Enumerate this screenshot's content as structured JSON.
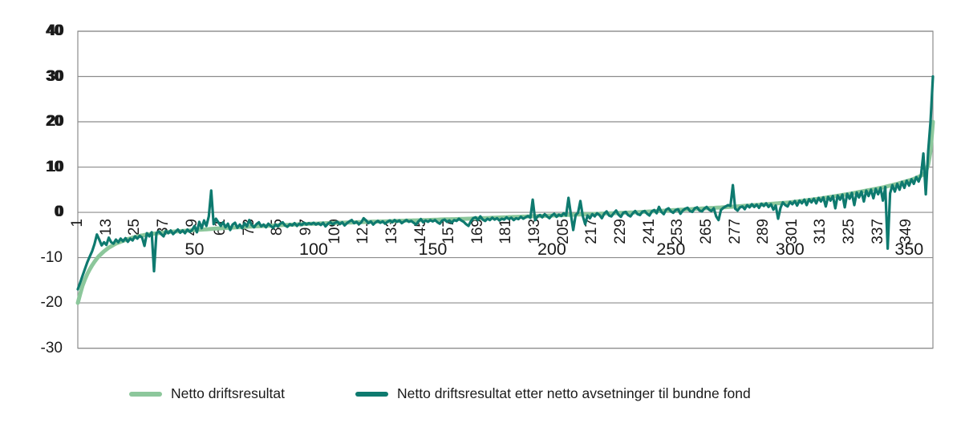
{
  "legend": {
    "items": [
      {
        "label": "Netto driftsresultat",
        "color": "#8CC79B"
      },
      {
        "label": "Netto driftsresultat etter netto avsetninger til bundne fond",
        "color": "#0E7A6F"
      }
    ]
  },
  "colors": {
    "background": "#ffffff",
    "gridline": "#8c8c8c",
    "text": "#1a1a1a",
    "series_light_green": "#8CC79B",
    "series_dark_teal": "#0E7A6F"
  },
  "chart_data": {
    "type": "line",
    "title": "",
    "xlabel": "",
    "ylabel": "",
    "ylim": [
      -30,
      40
    ],
    "x_start": 1,
    "x_end": 360,
    "grid": "horizontal",
    "legend_position": "bottom",
    "y_ticks": [
      40,
      30,
      20,
      10,
      0,
      -10,
      -20,
      -30
    ],
    "x_ticks_rotated": [
      1,
      13,
      25,
      37,
      49,
      61,
      73,
      85,
      97,
      109,
      121,
      133,
      145,
      157,
      169,
      181,
      193,
      205,
      217,
      229,
      241,
      253,
      265,
      277,
      289,
      301,
      313,
      325,
      337,
      349
    ],
    "x_ticks_horizontal": [
      50,
      100,
      150,
      200,
      250,
      300,
      350
    ],
    "series": [
      {
        "name": "Netto driftsresultat",
        "color": "#8CC79B",
        "stroke_width": 5,
        "values": [
          -20.0,
          -18.0,
          -16.2,
          -14.8,
          -13.6,
          -12.6,
          -11.7,
          -10.9,
          -10.2,
          -9.6,
          -9.1,
          -8.6,
          -8.2,
          -7.8,
          -7.5,
          -7.2,
          -6.9,
          -6.7,
          -6.5,
          -6.3,
          -6.1,
          -5.9,
          -5.75,
          -5.6,
          -5.45,
          -5.3,
          -5.2,
          -5.1,
          -5.0,
          -4.9,
          -4.83,
          -4.77,
          -4.7,
          -4.63,
          -4.57,
          -4.5,
          -4.45,
          -4.4,
          -4.35,
          -4.3,
          -4.26,
          -4.22,
          -4.19,
          -4.15,
          -4.11,
          -4.07,
          -4.04,
          -4.0,
          -3.96,
          -3.92,
          -3.89,
          -3.85,
          -3.81,
          -3.77,
          -3.74,
          -3.7,
          -3.66,
          -3.62,
          -3.59,
          -3.55,
          -3.52,
          -3.49,
          -3.46,
          -3.43,
          -3.4,
          -3.37,
          -3.34,
          -3.31,
          -3.28,
          -3.25,
          -3.22,
          -3.19,
          -3.16,
          -3.13,
          -3.1,
          -3.08,
          -3.06,
          -3.04,
          -3.02,
          -3.0,
          -2.97,
          -2.94,
          -2.91,
          -2.88,
          -2.85,
          -2.83,
          -2.81,
          -2.79,
          -2.77,
          -2.75,
          -2.72,
          -2.69,
          -2.66,
          -2.63,
          -2.6,
          -2.58,
          -2.56,
          -2.54,
          -2.52,
          -2.5,
          -2.48,
          -2.46,
          -2.44,
          -2.42,
          -2.4,
          -2.38,
          -2.36,
          -2.34,
          -2.32,
          -2.3,
          -2.29,
          -2.28,
          -2.27,
          -2.26,
          -2.25,
          -2.23,
          -2.21,
          -2.19,
          -2.17,
          -2.15,
          -2.13,
          -2.11,
          -2.09,
          -2.07,
          -2.05,
          -2.04,
          -2.03,
          -2.02,
          -2.01,
          -2.0,
          -1.98,
          -1.96,
          -1.94,
          -1.92,
          -1.9,
          -1.88,
          -1.86,
          -1.84,
          -1.82,
          -1.8,
          -1.79,
          -1.78,
          -1.77,
          -1.76,
          -1.75,
          -1.73,
          -1.71,
          -1.69,
          -1.67,
          -1.65,
          -1.63,
          -1.61,
          -1.59,
          -1.57,
          -1.55,
          -1.54,
          -1.53,
          -1.52,
          -1.51,
          -1.5,
          -1.48,
          -1.46,
          -1.44,
          -1.42,
          -1.4,
          -1.38,
          -1.36,
          -1.34,
          -1.32,
          -1.3,
          -1.28,
          -1.26,
          -1.24,
          -1.22,
          -1.2,
          -1.18,
          -1.16,
          -1.14,
          -1.12,
          -1.1,
          -1.08,
          -1.06,
          -1.04,
          -1.02,
          -1.0,
          -0.98,
          -0.96,
          -0.94,
          -0.92,
          -0.9,
          -0.88,
          -0.86,
          -0.84,
          -0.82,
          -0.8,
          -0.78,
          -0.76,
          -0.74,
          -0.72,
          -0.7,
          -0.68,
          -0.66,
          -0.64,
          -0.62,
          -0.6,
          -0.58,
          -0.56,
          -0.54,
          -0.52,
          -0.5,
          -0.48,
          -0.46,
          -0.44,
          -0.42,
          -0.4,
          -0.38,
          -0.36,
          -0.34,
          -0.32,
          -0.3,
          -0.28,
          -0.26,
          -0.24,
          -0.22,
          -0.2,
          -0.18,
          -0.16,
          -0.14,
          -0.12,
          -0.1,
          -0.08,
          -0.06,
          -0.04,
          -0.02,
          0.0,
          0.03,
          0.06,
          0.09,
          0.12,
          0.15,
          0.18,
          0.21,
          0.24,
          0.27,
          0.3,
          0.33,
          0.36,
          0.39,
          0.42,
          0.45,
          0.48,
          0.51,
          0.54,
          0.57,
          0.6,
          0.63,
          0.66,
          0.69,
          0.72,
          0.75,
          0.78,
          0.81,
          0.84,
          0.87,
          0.9,
          0.93,
          0.96,
          0.99,
          1.02,
          1.05,
          1.08,
          1.11,
          1.14,
          1.17,
          1.2,
          1.24,
          1.28,
          1.32,
          1.36,
          1.4,
          1.44,
          1.48,
          1.52,
          1.56,
          1.6,
          1.64,
          1.68,
          1.72,
          1.76,
          1.8,
          1.84,
          1.88,
          1.92,
          1.96,
          2.0,
          2.04,
          2.08,
          2.12,
          2.16,
          2.2,
          2.27,
          2.33,
          2.4,
          2.47,
          2.53,
          2.6,
          2.67,
          2.73,
          2.8,
          2.87,
          2.93,
          3.0,
          3.08,
          3.17,
          3.25,
          3.33,
          3.42,
          3.5,
          3.58,
          3.67,
          3.75,
          3.83,
          3.92,
          4.0,
          4.1,
          4.2,
          4.3,
          4.4,
          4.5,
          4.6,
          4.7,
          4.8,
          4.9,
          5.0,
          5.1,
          5.2,
          5.3,
          5.4,
          5.5,
          5.63,
          5.77,
          5.9,
          6.03,
          6.17,
          6.3,
          6.45,
          6.6,
          6.75,
          6.9,
          7.05,
          7.2,
          7.4,
          7.6,
          7.85,
          8.1,
          8.4,
          9.0,
          10.5,
          13.5,
          20.0
        ]
      },
      {
        "name": "Netto driftsresultat etter netto avsetninger til bundne fond",
        "color": "#0E7A6F",
        "stroke_width": 3.2,
        "values": [
          -17.0,
          -15.5,
          -14.0,
          -12.5,
          -11.0,
          -9.8,
          -8.6,
          -7.0,
          -4.9,
          -6.0,
          -7.3,
          -6.6,
          -7.2,
          -5.6,
          -6.6,
          -6.9,
          -6.0,
          -6.6,
          -5.8,
          -6.4,
          -5.7,
          -6.5,
          -5.8,
          -6.2,
          -5.3,
          -5.8,
          -5.2,
          -5.6,
          -7.4,
          -4.6,
          -5.3,
          -4.4,
          -13.0,
          -4.6,
          -4.2,
          -4.8,
          -5.3,
          -4.1,
          -4.6,
          -4.0,
          -4.8,
          -4.3,
          -3.8,
          -4.5,
          -4.0,
          -4.6,
          -3.8,
          -4.3,
          -3.9,
          -3.0,
          -4.4,
          -2.1,
          -3.5,
          -1.8,
          -3.0,
          -0.9,
          4.8,
          -2.6,
          -1.4,
          -2.2,
          -3.0,
          -2.2,
          -3.3,
          -2.5,
          -3.9,
          -2.7,
          -2.3,
          -3.4,
          -2.7,
          -3.5,
          -2.4,
          -3.1,
          -1.7,
          -2.8,
          -3.3,
          -2.6,
          -2.2,
          -3.1,
          -2.7,
          -3.3,
          -2.5,
          -3.0,
          -3.4,
          -2.7,
          -3.1,
          -2.5,
          -2.2,
          -2.9,
          -3.2,
          -2.6,
          -2.9,
          -2.4,
          -3.0,
          -2.5,
          -2.8,
          -2.3,
          -2.7,
          -2.4,
          -2.6,
          -2.3,
          -2.7,
          -2.4,
          -2.8,
          -2.3,
          -3.1,
          -2.5,
          -2.2,
          -2.6,
          -2.3,
          -2.1,
          -2.6,
          -2.2,
          -2.9,
          -2.4,
          -2.0,
          -1.7,
          -2.4,
          -2.1,
          -2.6,
          -2.2,
          -1.3,
          -1.8,
          -2.4,
          -2.0,
          -2.7,
          -2.2,
          -1.9,
          -2.3,
          -2.0,
          -2.5,
          -2.1,
          -1.8,
          -2.2,
          -1.7,
          -2.1,
          -1.8,
          -2.4,
          -2.0,
          -1.7,
          -2.1,
          -1.9,
          -2.3,
          -2.7,
          -2.0,
          -1.5,
          -2.2,
          -1.8,
          -2.1,
          -1.7,
          -2.0,
          -1.7,
          -2.2,
          -2.5,
          -1.8,
          -1.6,
          -2.1,
          -1.8,
          -2.3,
          -1.7,
          -1.9,
          -1.4,
          -1.8,
          -2.1,
          -2.6,
          -3.0,
          -2.0,
          -1.3,
          -1.1,
          -1.7,
          -0.9,
          -1.6,
          -1.9,
          -1.4,
          -1.7,
          -1.2,
          -1.6,
          -1.3,
          -1.8,
          -1.4,
          -1.6,
          -1.1,
          -1.5,
          -1.2,
          -1.7,
          -1.3,
          -1.5,
          -1.0,
          -1.4,
          -1.1,
          -0.8,
          -1.2,
          2.8,
          -1.7,
          -0.9,
          -0.6,
          -1.1,
          -0.4,
          -0.9,
          -1.3,
          -0.7,
          -0.3,
          -1.0,
          -0.5,
          -0.8,
          -0.2,
          -0.7,
          3.2,
          -0.5,
          -3.9,
          -0.6,
          -0.1,
          2.5,
          -0.8,
          -2.6,
          -0.7,
          -1.3,
          -0.4,
          -0.9,
          -0.2,
          -0.6,
          -1.3,
          -0.3,
          0.2,
          -0.7,
          -0.9,
          -0.2,
          0.4,
          -0.5,
          -1.0,
          -0.1,
          0.1,
          -0.6,
          -0.9,
          -0.2,
          0.3,
          -0.4,
          -0.6,
          0.1,
          0.3,
          -0.3,
          -0.7,
          0.2,
          0.5,
          -0.2,
          1.2,
          0.1,
          -0.4,
          0.6,
          0.9,
          0.2,
          -0.1,
          0.5,
          0.7,
          -0.3,
          0.4,
          0.8,
          1.0,
          0.3,
          0.1,
          0.9,
          1.1,
          0.4,
          0.2,
          0.8,
          1.2,
          0.6,
          0.3,
          0.9,
          -0.9,
          -1.7,
          0.5,
          1.0,
          1.3,
          1.6,
          1.4,
          6.0,
          0.8,
          0.4,
          1.1,
          1.3,
          0.7,
          1.6,
          1.1,
          1.8,
          1.2,
          1.7,
          1.0,
          1.9,
          1.4,
          2.0,
          1.2,
          1.8,
          0.6,
          1.5,
          -1.4,
          1.0,
          2.2,
          1.6,
          1.3,
          2.3,
          1.8,
          2.5,
          1.5,
          2.6,
          2.0,
          2.8,
          1.6,
          2.9,
          2.2,
          3.0,
          2.0,
          3.2,
          2.4,
          3.3,
          1.3,
          3.4,
          2.6,
          3.6,
          0.9,
          3.7,
          2.8,
          3.9,
          1.1,
          4.1,
          3.0,
          4.3,
          1.6,
          4.4,
          3.3,
          4.6,
          2.4,
          4.8,
          3.6,
          5.0,
          3.1,
          5.2,
          4.0,
          5.4,
          2.6,
          5.6,
          -8.0,
          4.2,
          6.0,
          4.6,
          6.3,
          5.0,
          6.7,
          5.4,
          7.0,
          5.9,
          7.3,
          6.3,
          7.8,
          6.8,
          8.3,
          13.0,
          4.0,
          13.5,
          20.0,
          30.0
        ]
      }
    ]
  }
}
